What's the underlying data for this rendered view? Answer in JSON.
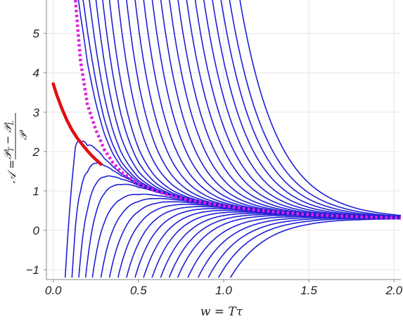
{
  "chart_data": {
    "type": "line",
    "title": "",
    "xlabel": "w = Tτ",
    "ylabel": {
      "prefix": "𝒜 =",
      "numerator": "𝒫",
      "numerator_sub_1": "T",
      "minus": "−",
      "numerator_2": "𝒫",
      "numerator_sub_2": "L",
      "denominator": "𝒫"
    },
    "xlim": [
      -0.04,
      2.04
    ],
    "ylim": [
      -1.25,
      5.85
    ],
    "x_ticks": [
      "0.0",
      "0.5",
      "1.0",
      "1.5",
      "2.0"
    ],
    "y_ticks": [
      "−1",
      "0",
      "1",
      "2",
      "3",
      "4",
      "5"
    ],
    "x_tick_values": [
      0,
      0.5,
      1.0,
      1.5,
      2.0
    ],
    "y_tick_values": [
      -1,
      0,
      1,
      2,
      3,
      4,
      5
    ],
    "grid": true,
    "colors": {
      "blue_curves": "#1f1fd6",
      "red_curve": "#e01010",
      "magenta_dotted": "#e020e0",
      "grid": "#e6e6e6",
      "frame": "#888888"
    },
    "attractor": {
      "note_free": "",
      "x": [
        0.13,
        0.16,
        0.2,
        0.25,
        0.3,
        0.35,
        0.4,
        0.5,
        0.6,
        0.7,
        0.8,
        0.9,
        1.0,
        1.1,
        1.2,
        1.3,
        1.4,
        1.5,
        1.6,
        1.7,
        1.8,
        1.9,
        2.0,
        2.04
      ],
      "y": [
        5.85,
        4.3,
        3.2,
        2.55,
        2.05,
        1.72,
        1.48,
        1.18,
        1.0,
        0.87,
        0.77,
        0.69,
        0.62,
        0.56,
        0.51,
        0.47,
        0.43,
        0.4,
        0.38,
        0.36,
        0.34,
        0.33,
        0.32,
        0.315
      ]
    },
    "red_curve": {
      "x": [
        0.0,
        0.02,
        0.05,
        0.08,
        0.11,
        0.14,
        0.17,
        0.2,
        0.23,
        0.26,
        0.28
      ],
      "y": [
        3.72,
        3.45,
        3.1,
        2.8,
        2.55,
        2.35,
        2.18,
        2.02,
        1.88,
        1.76,
        1.68
      ]
    },
    "from_below_starts": [
      0.07,
      0.11,
      0.15,
      0.19,
      0.23,
      0.28,
      0.33,
      0.38,
      0.43,
      0.48,
      0.53,
      0.58,
      0.63,
      0.68,
      0.73,
      0.79,
      0.85,
      0.91,
      0.97,
      1.04
    ],
    "from_above_starts": [
      0.12,
      0.16,
      0.2,
      0.24,
      0.28,
      0.32,
      0.37,
      0.42,
      0.47,
      0.52,
      0.57,
      0.62,
      0.67,
      0.72,
      0.77,
      0.82,
      0.87,
      0.92,
      0.97,
      1.02,
      1.08
    ]
  }
}
